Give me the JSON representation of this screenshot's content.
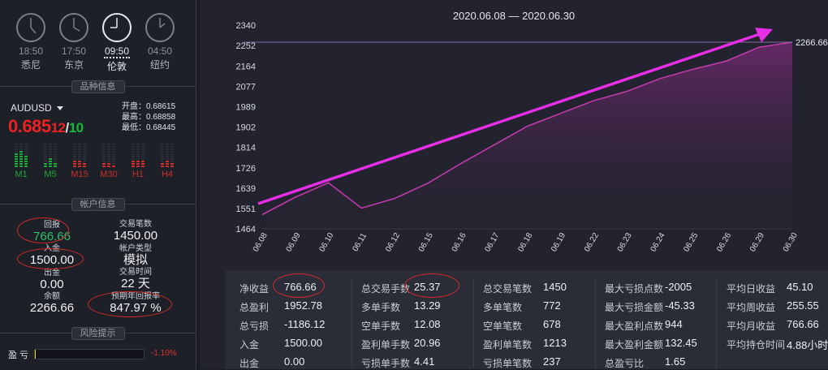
{
  "clocks": [
    {
      "time": "18:50",
      "city": "悉尼"
    },
    {
      "time": "17:50",
      "city": "东京"
    },
    {
      "time": "09:50",
      "city": "伦敦"
    },
    {
      "time": "04:50",
      "city": "纽约"
    }
  ],
  "sections": {
    "symbol_info": "品种信息",
    "account_info": "帐户信息",
    "risk_tips": "风险提示"
  },
  "symbol": {
    "name": "AUDUSD",
    "price_main": "0.685",
    "price_small": "12",
    "price_slash": "/",
    "price_green": "10",
    "open": "开盘：0.68615",
    "high": "最高：0.68858",
    "low": "最低：0.68445"
  },
  "timeframes": [
    {
      "label": "M1",
      "color": "#1fa83a",
      "levels": [
        6,
        7,
        5
      ]
    },
    {
      "label": "M5",
      "color": "#1fa83a",
      "levels": [
        2,
        4,
        2
      ]
    },
    {
      "label": "M15",
      "color": "#c9302c",
      "levels": [
        3,
        3,
        2
      ]
    },
    {
      "label": "M30",
      "color": "#c9302c",
      "levels": [
        2,
        2,
        1
      ]
    },
    {
      "label": "H1",
      "color": "#c9302c",
      "levels": [
        3,
        3,
        3
      ]
    },
    {
      "label": "H4",
      "color": "#c9302c",
      "levels": [
        2,
        3,
        2
      ]
    }
  ],
  "account": {
    "profit_label": "回报",
    "profit": "766.66",
    "deposit_label": "入金",
    "deposit": "1500.00",
    "withdraw_label": "出金",
    "withdraw": "0.00",
    "balance_label": "余额",
    "balance": "2266.66",
    "trades_label": "交易笔数",
    "trades": "1450.00",
    "type_label": "帐户类型",
    "type": "模拟",
    "days_label": "交易时间",
    "days": "22 天",
    "annual_label": "预期年回报率",
    "annual": "847.97 %"
  },
  "risk": {
    "label": "盈 亏",
    "value": "-1.10%",
    "fill_fraction": 0.01
  },
  "chart_data": {
    "type": "area",
    "title": "2020.06.08 — 2020.06.30",
    "x": [
      "06.08",
      "06.09",
      "06.10",
      "06.11",
      "06.12",
      "06.15",
      "06.16",
      "06.17",
      "06.18",
      "06.19",
      "06.22",
      "06.23",
      "06.24",
      "06.25",
      "06.26",
      "06.29",
      "06.30"
    ],
    "y": [
      1525,
      1600,
      1662,
      1553,
      1595,
      1660,
      1745,
      1825,
      1905,
      1960,
      2015,
      2055,
      2110,
      2150,
      2185,
      2245,
      2266.66
    ],
    "yticks": [
      "1464",
      "1551",
      "1639",
      "1726",
      "1814",
      "1902",
      "1989",
      "2077",
      "2164",
      "2252",
      "2340"
    ],
    "ylim": [
      1464,
      2340
    ],
    "last_label": "2266.66",
    "line_color": "#c03aa8",
    "arrow_color": "#e62ee6",
    "grid": false
  },
  "stats": [
    [
      {
        "label": "净收益",
        "value": "766.66"
      },
      {
        "label": "总盈利",
        "value": "1952.78"
      },
      {
        "label": "总亏损",
        "value": "-1186.12"
      },
      {
        "label": "入金",
        "value": "1500.00"
      },
      {
        "label": "出金",
        "value": "0.00"
      }
    ],
    [
      {
        "label": "总交易手数",
        "value": "25.37"
      },
      {
        "label": "多单手数",
        "value": "13.29"
      },
      {
        "label": "空单手数",
        "value": "12.08"
      },
      {
        "label": "盈利单手数",
        "value": "20.96"
      },
      {
        "label": "亏损单手数",
        "value": "4.41"
      }
    ],
    [
      {
        "label": "总交易笔数",
        "value": "1450"
      },
      {
        "label": "多单笔数",
        "value": "772"
      },
      {
        "label": "空单笔数",
        "value": "678"
      },
      {
        "label": "盈利单笔数",
        "value": "1213"
      },
      {
        "label": "亏损单笔数",
        "value": "237"
      }
    ],
    [
      {
        "label": "最大亏损点数",
        "value": "-2005"
      },
      {
        "label": "最大亏损金额",
        "value": "-45.33"
      },
      {
        "label": "最大盈利点数",
        "value": "944"
      },
      {
        "label": "最大盈利金额",
        "value": "132.45"
      },
      {
        "label": "总盈亏比",
        "value": "1.65"
      }
    ],
    [
      {
        "label": "平均日收益",
        "value": "45.10"
      },
      {
        "label": "平均周收益",
        "value": "255.55"
      },
      {
        "label": "平均月收益",
        "value": "766.66"
      },
      {
        "label": "平均持仓时间",
        "value": "4.88小时"
      }
    ]
  ]
}
